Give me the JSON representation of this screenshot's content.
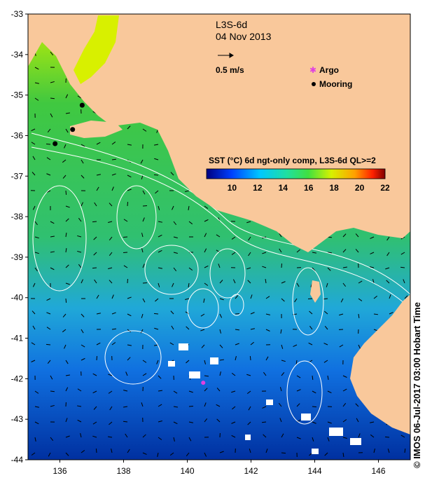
{
  "map": {
    "title": "L3S-6d",
    "date": "04 Nov 2013",
    "scale_label": "0.5 m/s",
    "legend": [
      {
        "label": "Argo",
        "color": "#e040e0",
        "symbol": "star"
      },
      {
        "label": "Mooring",
        "color": "#000000",
        "symbol": "dot"
      }
    ],
    "colorbar": {
      "title": "SST (°C) 6d ngt-only comp, L3S-6d QL>=2",
      "ticks": [
        "10",
        "12",
        "14",
        "16",
        "18",
        "20",
        "22"
      ],
      "min": 8,
      "max": 22
    },
    "credit": "© IMOS 06-Jul-2017 03:00 Hobart Time",
    "lon_ticks": [
      "136",
      "138",
      "140",
      "142",
      "144",
      "146"
    ],
    "lat_ticks": [
      "-33",
      "-34",
      "-35",
      "-36",
      "-37",
      "-38",
      "-39",
      "-40",
      "-41",
      "-42",
      "-43",
      "-44"
    ],
    "extent": {
      "lon": [
        135,
        147
      ],
      "lat": [
        -44,
        -33
      ]
    },
    "land_color": "#f9c89b",
    "moorings": [
      [
        136.7,
        -35.25
      ],
      [
        136.4,
        -35.85
      ],
      [
        135.85,
        -36.2
      ]
    ],
    "argo": [
      [
        140.5,
        -42.1
      ]
    ]
  }
}
